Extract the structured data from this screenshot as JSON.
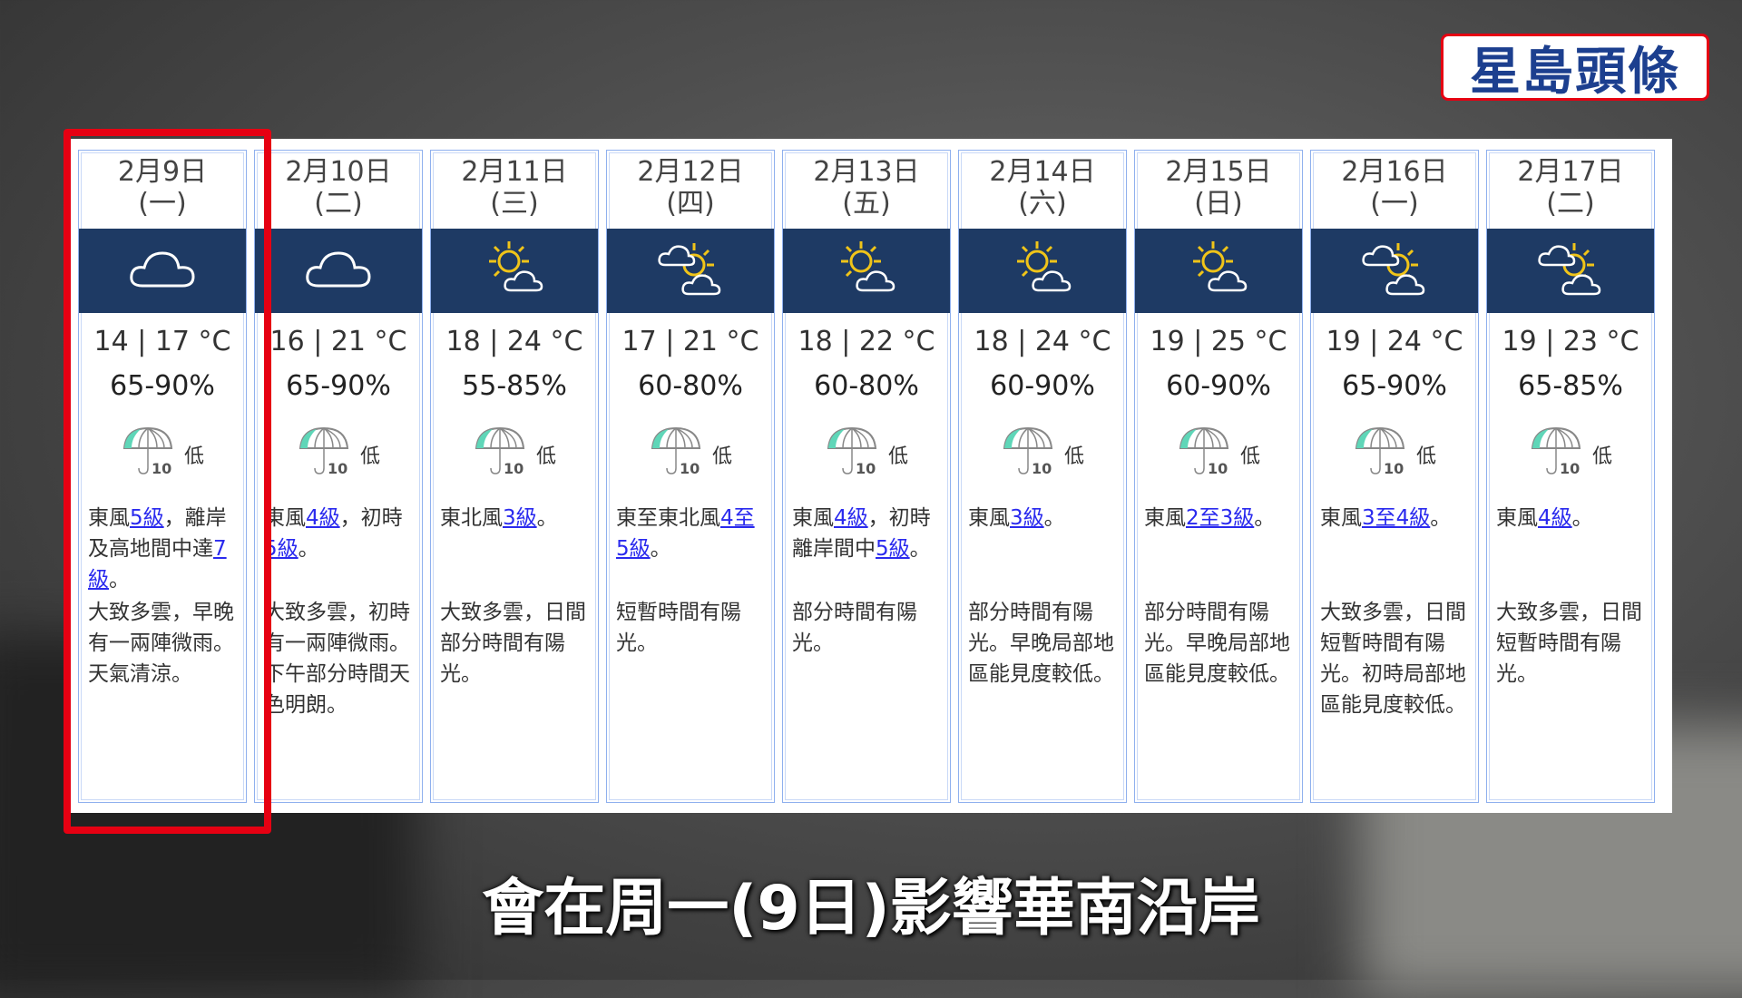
{
  "brand": {
    "logo_text": "星島頭條"
  },
  "subtitle": "會在周一(9日)影響華南沿岸",
  "colors": {
    "header_band": "#1e3a64",
    "highlight": "#e60012",
    "link": "#2a2aee",
    "umbrella": "#5fd6b8"
  },
  "days": [
    {
      "date": "2月9日",
      "weekday": "(一)",
      "icon": "cloud-icon",
      "temp": "14 | 17 °C",
      "humidity": "65-90%",
      "psr": "低",
      "wind": [
        {
          "t": "東風"
        },
        {
          "t": "5級",
          "link": true
        },
        {
          "t": "，離岸及高地間中達"
        },
        {
          "t": "7級",
          "link": true
        },
        {
          "t": "。"
        }
      ],
      "desc": "大致多雲，早晚有一兩陣微雨。天氣清涼。"
    },
    {
      "date": "2月10日",
      "weekday": "(二)",
      "icon": "cloud-icon",
      "temp": "16 | 21 °C",
      "humidity": "65-90%",
      "psr": "低",
      "wind": [
        {
          "t": "東風"
        },
        {
          "t": "4級",
          "link": true
        },
        {
          "t": "，初時"
        },
        {
          "t": "5級",
          "link": true
        },
        {
          "t": "。"
        }
      ],
      "desc": "大致多雲，初時有一兩陣微雨。下午部分時間天色明朗。"
    },
    {
      "date": "2月11日",
      "weekday": "(三)",
      "icon": "sun-cloud-icon",
      "temp": "18 | 24 °C",
      "humidity": "55-85%",
      "psr": "低",
      "wind": [
        {
          "t": "東北風"
        },
        {
          "t": "3級",
          "link": true
        },
        {
          "t": "。"
        }
      ],
      "desc": "大致多雲，日間部分時間有陽光。"
    },
    {
      "date": "2月12日",
      "weekday": "(四)",
      "icon": "sun-clouds-icon",
      "temp": "17 | 21 °C",
      "humidity": "60-80%",
      "psr": "低",
      "wind": [
        {
          "t": "東至東北風"
        },
        {
          "t": "4至5級",
          "link": true
        },
        {
          "t": "。"
        }
      ],
      "desc": "短暫時間有陽光。"
    },
    {
      "date": "2月13日",
      "weekday": "(五)",
      "icon": "sun-cloud-icon",
      "temp": "18 | 22 °C",
      "humidity": "60-80%",
      "psr": "低",
      "wind": [
        {
          "t": "東風"
        },
        {
          "t": "4級",
          "link": true
        },
        {
          "t": "，初時離岸間中"
        },
        {
          "t": "5級",
          "link": true
        },
        {
          "t": "。"
        }
      ],
      "desc": "部分時間有陽光。"
    },
    {
      "date": "2月14日",
      "weekday": "(六)",
      "icon": "sun-cloud-icon",
      "temp": "18 | 24 °C",
      "humidity": "60-90%",
      "psr": "低",
      "wind": [
        {
          "t": "東風"
        },
        {
          "t": "3級",
          "link": true
        },
        {
          "t": "。"
        }
      ],
      "desc": "部分時間有陽光。早晚局部地區能見度較低。"
    },
    {
      "date": "2月15日",
      "weekday": "(日)",
      "icon": "sun-cloud-icon",
      "temp": "19 | 25 °C",
      "humidity": "60-90%",
      "psr": "低",
      "wind": [
        {
          "t": "東風"
        },
        {
          "t": "2至3級",
          "link": true
        },
        {
          "t": "。"
        }
      ],
      "desc": "部分時間有陽光。早晚局部地區能見度較低。"
    },
    {
      "date": "2月16日",
      "weekday": "(一)",
      "icon": "sun-clouds-icon",
      "temp": "19 | 24 °C",
      "humidity": "65-90%",
      "psr": "低",
      "wind": [
        {
          "t": "東風"
        },
        {
          "t": "3至4級",
          "link": true
        },
        {
          "t": "。"
        }
      ],
      "desc": "大致多雲，日間短暫時間有陽光。初時局部地區能見度較低。"
    },
    {
      "date": "2月17日",
      "weekday": "(二)",
      "icon": "sun-clouds-icon",
      "temp": "19 | 23 °C",
      "humidity": "65-85%",
      "psr": "低",
      "wind": [
        {
          "t": "東風"
        },
        {
          "t": "4級",
          "link": true
        },
        {
          "t": "。"
        }
      ],
      "desc": "大致多雲，日間短暫時間有陽光。"
    }
  ]
}
